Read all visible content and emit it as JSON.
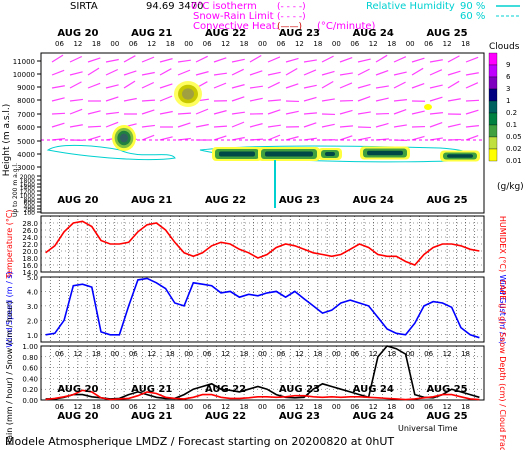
{
  "header": {
    "station": "SIRTA",
    "coords": "94.69",
    "coords_suffix": "3470",
    "legend_isotherm": "0°C isotherm",
    "legend_snowrain": "Snow-Rain Limit",
    "legend_convective": "Convective Heat.",
    "legend_convective_unit": "(°C/minute)",
    "legend_rh": "Relative Humidity",
    "rh_90": "90 %",
    "rh_60": "60 %",
    "dashes": "(- - - -)",
    "paren_line": "(——)"
  },
  "days": [
    "AUG 20",
    "AUG 21",
    "AUG 22",
    "AUG 23",
    "AUG 24",
    "AUG 25"
  ],
  "hours": [
    "06",
    "12",
    "18",
    "00",
    "06",
    "12",
    "18",
    "00",
    "06",
    "12",
    "18",
    "00",
    "06",
    "12",
    "18",
    "00",
    "06",
    "12",
    "18",
    "00",
    "06",
    "12",
    "18"
  ],
  "hours_top": [
    "06",
    "12",
    "18",
    "00",
    "06",
    "12",
    "18",
    "00",
    "06",
    "12",
    "18",
    "00",
    "06",
    "12",
    "18",
    "00",
    "06",
    "12",
    "18",
    "00",
    "06",
    "12",
    "18"
  ],
  "panel1": {
    "ylabel": "Height (m a.s.l.)",
    "ylabel2": "Up to 200 m a.g.l.",
    "yticks": [
      "11000",
      "10000",
      "9000",
      "8000",
      "7000",
      "6000",
      "5000",
      "4000",
      "3000",
      "2000",
      "1800",
      "1600",
      "1400",
      "1200",
      "1000",
      "800",
      "600",
      "400",
      "200",
      "100"
    ]
  },
  "clouds_scale": {
    "title": "Clouds",
    "unit": "(g/kg)",
    "levels": [
      "9",
      "6",
      "3",
      "1",
      "0.2",
      "0.1",
      "0.05",
      "0.02",
      "0.01"
    ],
    "colors": [
      "#ff00ff",
      "#c000ff",
      "#8000c0",
      "#000080",
      "#006060",
      "#008040",
      "#40a040",
      "#c0e040",
      "#ffff00"
    ]
  },
  "chart_data": [
    {
      "type": "line",
      "title": "",
      "ylabel": "Temperature (°C)",
      "ylabel_right": "HUMIDEX (°C)",
      "ylim": [
        14,
        30
      ],
      "yticks": [
        "28.0",
        "26.0",
        "24.0",
        "22.0",
        "20.0",
        "18.0",
        "16.0",
        "14.0"
      ],
      "x_hours": [
        0,
        3,
        6,
        9,
        12,
        15,
        18,
        21,
        24,
        27,
        30,
        33,
        36,
        39,
        42,
        45,
        48,
        51,
        54,
        57,
        60,
        63,
        66,
        69,
        72,
        75,
        78,
        81,
        84,
        87,
        90,
        93,
        96,
        99,
        102,
        105,
        108,
        111,
        114,
        117,
        120,
        123,
        126,
        129,
        132,
        135,
        138,
        141
      ],
      "series": [
        {
          "name": "",
          "color": "#ff0000",
          "values": [
            19.5,
            21.5,
            25.5,
            28.0,
            28.5,
            27.0,
            23.0,
            22.0,
            22.0,
            22.5,
            25.5,
            27.5,
            28.0,
            26.0,
            22.5,
            19.5,
            18.5,
            19.5,
            21.5,
            22.5,
            22.0,
            20.5,
            19.5,
            18.0,
            19.0,
            21.0,
            22.0,
            21.5,
            20.5,
            19.5,
            19.0,
            18.5,
            19.0,
            20.5,
            22.0,
            21.0,
            19.0,
            18.5,
            18.5,
            17.0,
            16.0,
            19.0,
            21.0,
            22.0,
            22.0,
            21.5,
            20.5,
            20.0
          ]
        }
      ]
    },
    {
      "type": "line",
      "title": "",
      "ylabel": "Wind Speed (m / s)",
      "ylabel_right": "Wind Gust (m / s)",
      "ylim": [
        0.5,
        5.0
      ],
      "yticks": [
        "5.0",
        "4.0",
        "3.0",
        "2.0",
        "1.0"
      ],
      "x_hours": [
        0,
        3,
        6,
        9,
        12,
        15,
        18,
        21,
        24,
        27,
        30,
        33,
        36,
        39,
        42,
        45,
        48,
        51,
        54,
        57,
        60,
        63,
        66,
        69,
        72,
        75,
        78,
        81,
        84,
        87,
        90,
        93,
        96,
        99,
        102,
        105,
        108,
        111,
        114,
        117,
        120,
        123,
        126,
        129,
        132,
        135,
        138,
        141
      ],
      "series": [
        {
          "name": "",
          "color": "#0000ff",
          "values": [
            1.0,
            1.1,
            2.0,
            4.4,
            4.5,
            4.3,
            1.2,
            1.0,
            1.0,
            3.0,
            4.8,
            4.9,
            4.6,
            4.2,
            3.2,
            3.0,
            4.6,
            4.5,
            4.4,
            3.9,
            4.0,
            3.6,
            3.8,
            3.7,
            3.9,
            4.0,
            3.6,
            4.0,
            3.5,
            3.0,
            2.5,
            2.7,
            3.2,
            3.4,
            3.2,
            3.0,
            2.2,
            1.4,
            1.1,
            1.0,
            1.8,
            3.0,
            3.3,
            3.2,
            2.9,
            1.5,
            1.0,
            0.8
          ]
        }
      ]
    },
    {
      "type": "line",
      "title": "",
      "ylabel": "Rain (mm / hour) / Snow (cm / hour)",
      "ylabel_right": "CAPE (J / g) / Snow Depth (cm) / Cloud Fraction",
      "xlabel": "Universal Time",
      "ylim": [
        0,
        1.0
      ],
      "yticks": [
        "1.00",
        "0.80",
        "0.60",
        "0.40",
        "0.20",
        "0.00"
      ],
      "x_hours": [
        0,
        3,
        6,
        9,
        12,
        15,
        18,
        21,
        24,
        27,
        30,
        33,
        36,
        39,
        42,
        45,
        48,
        51,
        54,
        57,
        60,
        63,
        66,
        69,
        72,
        75,
        78,
        81,
        84,
        87,
        90,
        93,
        96,
        99,
        102,
        105,
        108,
        111,
        114,
        117,
        120,
        123,
        126,
        129,
        132,
        135,
        138,
        141
      ],
      "series": [
        {
          "name": "",
          "color": "#000000",
          "values": [
            0.02,
            0.02,
            0.05,
            0.1,
            0.1,
            0.06,
            0.04,
            0.02,
            0.03,
            0.1,
            0.15,
            0.1,
            0.05,
            0.03,
            0.03,
            0.1,
            0.2,
            0.25,
            0.3,
            0.2,
            0.18,
            0.15,
            0.2,
            0.25,
            0.2,
            0.1,
            0.05,
            0.04,
            0.05,
            0.2,
            0.3,
            0.25,
            0.2,
            0.15,
            0.1,
            0.05,
            0.8,
            1.0,
            0.95,
            0.85,
            0.1,
            0.05,
            0.04,
            0.1,
            0.2,
            0.15,
            0.1,
            0.05
          ]
        },
        {
          "name": "",
          "color": "#ff0000",
          "values": [
            0.01,
            0.03,
            0.06,
            0.1,
            0.18,
            0.15,
            0.04,
            0.01,
            0.02,
            0.03,
            0.08,
            0.15,
            0.12,
            0.05,
            0.03,
            0.02,
            0.05,
            0.1,
            0.1,
            0.05,
            0.03,
            0.03,
            0.04,
            0.06,
            0.06,
            0.05,
            0.06,
            0.08,
            0.08,
            0.06,
            0.05,
            0.06,
            0.05,
            0.06,
            0.06,
            0.05,
            0.04,
            0.03,
            0.02,
            0.01,
            0.02,
            0.04,
            0.06,
            0.1,
            0.1,
            0.06,
            0.02,
            0.01
          ]
        }
      ]
    }
  ],
  "footer": "Modele Atmospherique LMDZ / Forecast starting on 20200820 at 0hUT"
}
